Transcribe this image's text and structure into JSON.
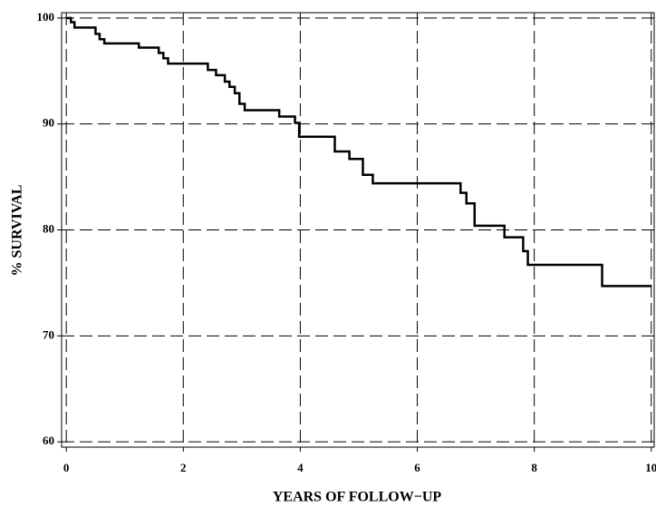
{
  "chart_data": {
    "type": "step",
    "xlabel": "YEARS OF FOLLOW−UP",
    "ylabel": "% SURVIVAL",
    "x": [
      0,
      0.08,
      0.14,
      0.5,
      0.57,
      0.65,
      1.24,
      1.58,
      1.66,
      1.74,
      2.42,
      2.56,
      2.71,
      2.79,
      2.88,
      2.96,
      3.05,
      3.64,
      3.91,
      3.98,
      4.59,
      4.84,
      5.07,
      5.24,
      6.74,
      6.84,
      6.98,
      7.49,
      7.81,
      7.89,
      9.16,
      10
    ],
    "series": [
      {
        "color": "#000000",
        "values": [
          100,
          99.6,
          99.1,
          98.5,
          98.0,
          97.6,
          97.2,
          96.7,
          96.2,
          95.7,
          95.1,
          94.6,
          94.0,
          93.5,
          92.9,
          91.9,
          91.3,
          90.7,
          90.1,
          88.8,
          87.4,
          86.7,
          85.2,
          84.4,
          83.5,
          82.5,
          80.4,
          79.3,
          78.0,
          76.7,
          74.7,
          74.7
        ]
      }
    ],
    "xlim": [
      -0.08,
      10.05
    ],
    "ylim": [
      59.5,
      100.5
    ],
    "xticks": [
      0,
      2,
      4,
      6,
      8,
      10
    ],
    "yticks": [
      60,
      70,
      80,
      90,
      100
    ],
    "grid": true
  }
}
